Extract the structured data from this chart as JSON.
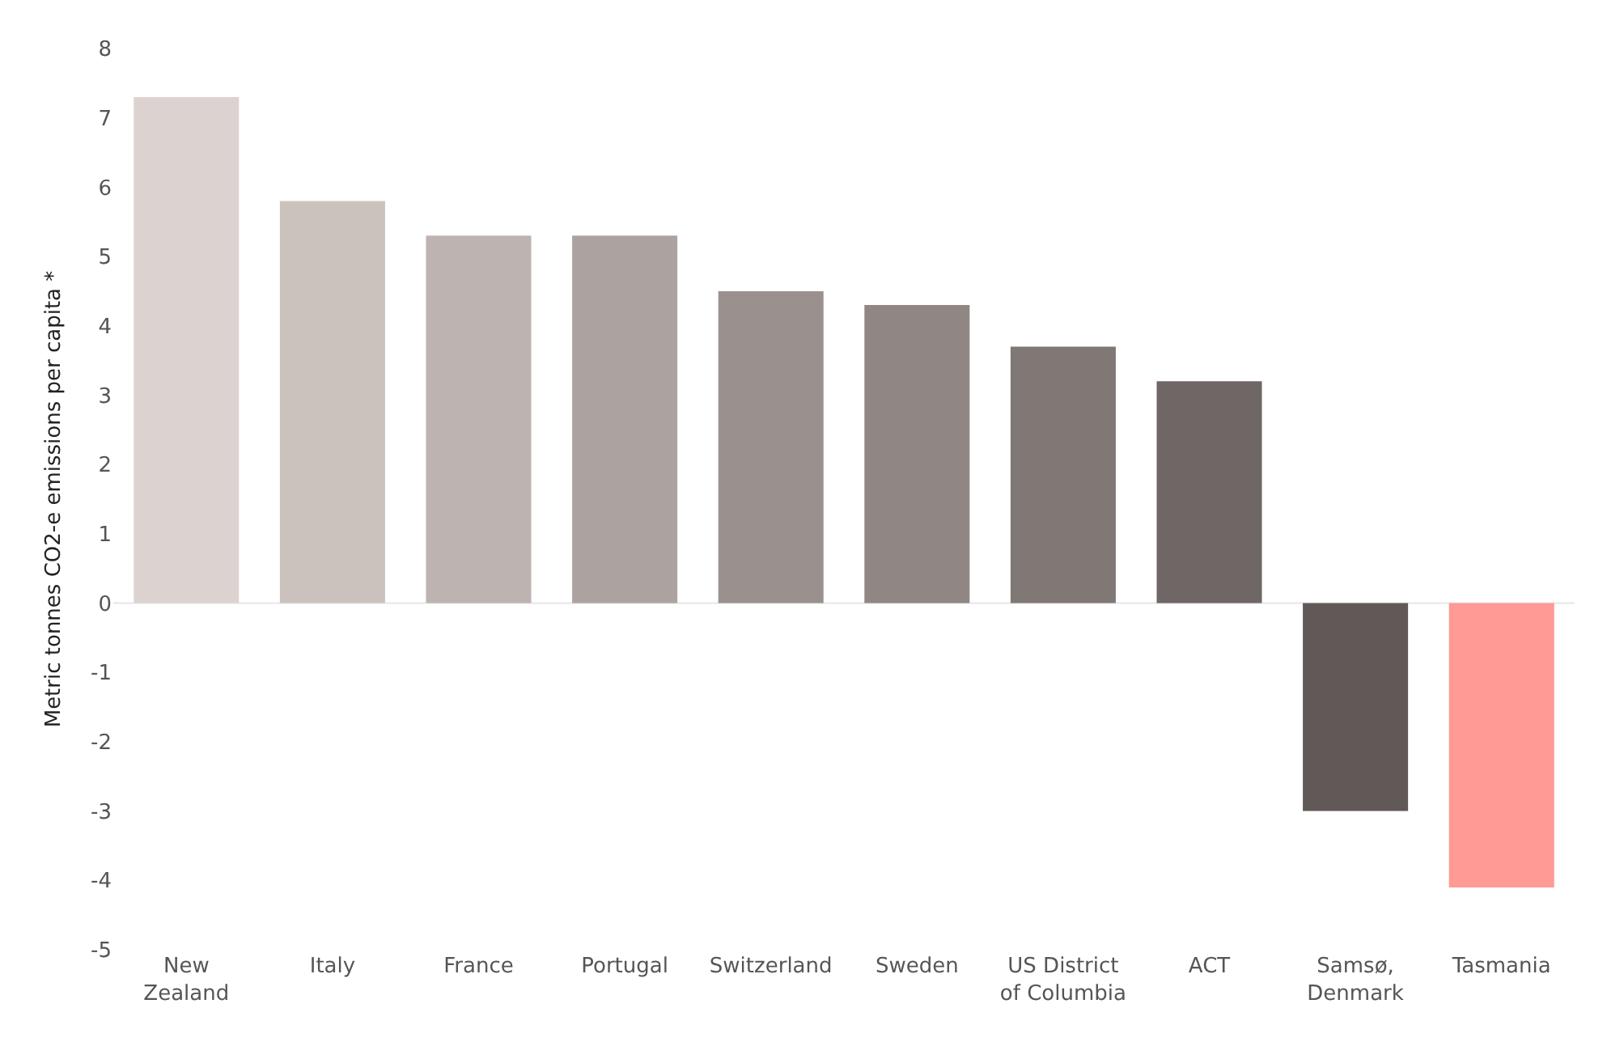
{
  "chart_data": {
    "type": "bar",
    "ylabel": "Metric tonnes CO2-e emissions per capita *",
    "categories": [
      "New\nZealand",
      "Italy",
      "France",
      "Portugal",
      "Switzerland",
      "Sweden",
      "US District\nof Columbia",
      "ACT",
      "Samsø,\nDenmark",
      "Tasmania"
    ],
    "values": [
      7.3,
      5.8,
      5.3,
      5.3,
      4.5,
      4.3,
      3.7,
      3.2,
      -3.0,
      -4.1
    ],
    "colors": [
      "#dcd3d1",
      "#cbc2be",
      "#bdb4b1",
      "#aca3a1",
      "#9a918f",
      "#908784",
      "#807874",
      "#6f6765",
      "#615957",
      "#ff9a94"
    ],
    "ylim": [
      -5,
      8
    ],
    "yticks": [
      -5,
      -4,
      -3,
      -2,
      -1,
      0,
      1,
      2,
      3,
      4,
      5,
      6,
      7,
      8
    ],
    "ref_lines": [
      {
        "axis": "y",
        "value": 0,
        "color": "#e6e6e6"
      }
    ]
  }
}
